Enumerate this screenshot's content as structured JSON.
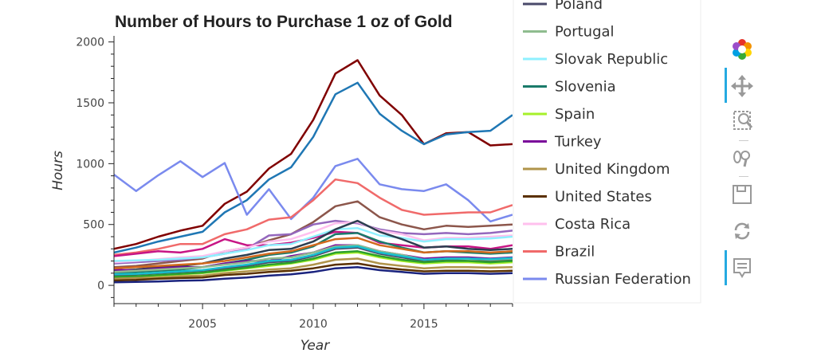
{
  "chart_data": {
    "type": "line",
    "title": "Number of Hours to Purchase 1 oz of Gold",
    "xlabel": "Year",
    "ylabel": "Hours",
    "xlim": [
      2001,
      2019
    ],
    "ylim": [
      -150,
      2050
    ],
    "x": [
      2001,
      2002,
      2003,
      2004,
      2005,
      2006,
      2007,
      2008,
      2009,
      2010,
      2011,
      2012,
      2013,
      2014,
      2015,
      2016,
      2017,
      2018,
      2019
    ],
    "x_ticks": [
      2005,
      2010,
      2015
    ],
    "y_ticks": [
      0,
      500,
      1000,
      1500,
      2000
    ],
    "legend_position": "right",
    "legend": [
      {
        "name": "Poland",
        "color": "#4a4a6a"
      },
      {
        "name": "Portugal",
        "color": "#8fbc8f"
      },
      {
        "name": "Slovak Republic",
        "color": "#8ff0ff"
      },
      {
        "name": "Slovenia",
        "color": "#1a7a6a"
      },
      {
        "name": "Spain",
        "color": "#a6f02a"
      },
      {
        "name": "Turkey",
        "color": "#7a0a9a"
      },
      {
        "name": "United Kingdom",
        "color": "#b0944a"
      },
      {
        "name": "United States",
        "color": "#5a3000"
      },
      {
        "name": "Costa Rica",
        "color": "#ffc0ee"
      },
      {
        "name": "Brazil",
        "color": "#f06a6a"
      },
      {
        "name": "Russian Federation",
        "color": "#7a8aee"
      }
    ],
    "series": [
      {
        "color": "#800000",
        "values": [
          300,
          340,
          400,
          450,
          490,
          670,
          770,
          960,
          1080,
          1360,
          1740,
          1850,
          1560,
          1400,
          1160,
          1250,
          1260,
          1150,
          1160
        ]
      },
      {
        "color": "#1f77b4",
        "values": [
          270,
          310,
          360,
          400,
          440,
          600,
          700,
          870,
          970,
          1220,
          1570,
          1665,
          1410,
          1270,
          1160,
          1240,
          1260,
          1270,
          1400
        ]
      },
      {
        "name": "Russian Federation",
        "color": "#7a8aee",
        "values": [
          910,
          775,
          905,
          1020,
          890,
          1005,
          580,
          790,
          545,
          720,
          980,
          1040,
          830,
          790,
          775,
          830,
          700,
          525,
          580
        ]
      },
      {
        "name": "Brazil",
        "color": "#f06a6a",
        "values": [
          250,
          270,
          300,
          340,
          340,
          420,
          460,
          540,
          560,
          700,
          870,
          840,
          720,
          620,
          580,
          590,
          600,
          600,
          660
        ]
      },
      {
        "color": "#8c564b",
        "values": [
          150,
          160,
          180,
          200,
          220,
          280,
          310,
          370,
          420,
          520,
          650,
          690,
          560,
          500,
          460,
          490,
          480,
          490,
          500
        ]
      },
      {
        "color": "#9467bd",
        "values": [
          180,
          190,
          200,
          210,
          230,
          260,
          300,
          410,
          420,
          500,
          530,
          510,
          460,
          430,
          420,
          430,
          420,
          430,
          450
        ]
      },
      {
        "color": "#c71585",
        "values": [
          240,
          260,
          280,
          270,
          300,
          380,
          330,
          330,
          350,
          390,
          440,
          430,
          350,
          330,
          310,
          320,
          320,
          300,
          330
        ]
      },
      {
        "name": "Costa Rica",
        "color": "#ffc0ee",
        "values": [
          190,
          200,
          215,
          230,
          240,
          280,
          310,
          360,
          380,
          440,
          510,
          520,
          450,
          420,
          370,
          390,
          390,
          400,
          410
        ]
      },
      {
        "name": "Slovak Republic",
        "color": "#8ff0ff",
        "values": [
          200,
          205,
          210,
          220,
          230,
          260,
          290,
          330,
          340,
          400,
          460,
          470,
          410,
          390,
          360,
          380,
          380,
          385,
          400
        ]
      },
      {
        "color": "#2c3e50",
        "values": [
          120,
          130,
          150,
          160,
          180,
          220,
          250,
          290,
          300,
          360,
          460,
          530,
          440,
          380,
          310,
          320,
          300,
          290,
          300
        ]
      },
      {
        "name": "Slovenia",
        "color": "#1a7a6a",
        "values": [
          100,
          110,
          120,
          130,
          150,
          180,
          210,
          250,
          270,
          320,
          420,
          430,
          360,
          310,
          270,
          280,
          270,
          260,
          270
        ]
      },
      {
        "name": "Turkey",
        "color": "#7a0a9a",
        "values": [
          130,
          120,
          140,
          150,
          150,
          180,
          200,
          200,
          240,
          270,
          330,
          330,
          280,
          250,
          220,
          230,
          230,
          220,
          230
        ]
      },
      {
        "name": "Poland",
        "color": "#4a4a6a",
        "values": [
          80,
          90,
          100,
          110,
          120,
          140,
          160,
          190,
          200,
          240,
          300,
          310,
          260,
          230,
          200,
          210,
          200,
          200,
          210
        ]
      },
      {
        "name": "Portugal",
        "color": "#8fbc8f",
        "values": [
          110,
          120,
          130,
          140,
          150,
          170,
          190,
          220,
          230,
          270,
          320,
          330,
          280,
          250,
          210,
          220,
          220,
          210,
          220
        ]
      },
      {
        "name": "Spain",
        "color": "#a6f02a",
        "values": [
          60,
          70,
          80,
          90,
          100,
          120,
          140,
          160,
          180,
          210,
          260,
          270,
          230,
          200,
          180,
          190,
          190,
          180,
          190
        ]
      },
      {
        "color": "#2ca02c",
        "values": [
          70,
          75,
          85,
          95,
          105,
          125,
          145,
          170,
          185,
          220,
          270,
          280,
          240,
          210,
          190,
          200,
          200,
          190,
          200
        ]
      },
      {
        "name": "United Kingdom",
        "color": "#b0944a",
        "values": [
          55,
          60,
          65,
          75,
          80,
          100,
          115,
          130,
          140,
          170,
          210,
          220,
          180,
          160,
          140,
          150,
          150,
          145,
          150
        ]
      },
      {
        "name": "United States",
        "color": "#5a3000",
        "values": [
          40,
          45,
          55,
          60,
          65,
          85,
          95,
          110,
          120,
          140,
          170,
          180,
          150,
          130,
          115,
          120,
          120,
          115,
          120
        ]
      },
      {
        "color": "#1a237e",
        "values": [
          25,
          28,
          32,
          38,
          42,
          55,
          65,
          80,
          90,
          110,
          140,
          150,
          125,
          110,
          95,
          100,
          100,
          95,
          100
        ]
      },
      {
        "color": "#d2691e",
        "values": [
          140,
          150,
          160,
          170,
          180,
          200,
          230,
          260,
          280,
          330,
          380,
          390,
          330,
          300,
          270,
          280,
          280,
          270,
          280
        ]
      },
      {
        "color": "#17becf",
        "values": [
          90,
          95,
          105,
          115,
          125,
          150,
          170,
          200,
          210,
          250,
          310,
          320,
          270,
          240,
          210,
          220,
          220,
          215,
          225
        ]
      }
    ]
  },
  "toolbar": {
    "items": [
      "bokeh-logo",
      "pan",
      "box-zoom",
      "wheel-zoom",
      "save",
      "reset",
      "hover"
    ]
  }
}
